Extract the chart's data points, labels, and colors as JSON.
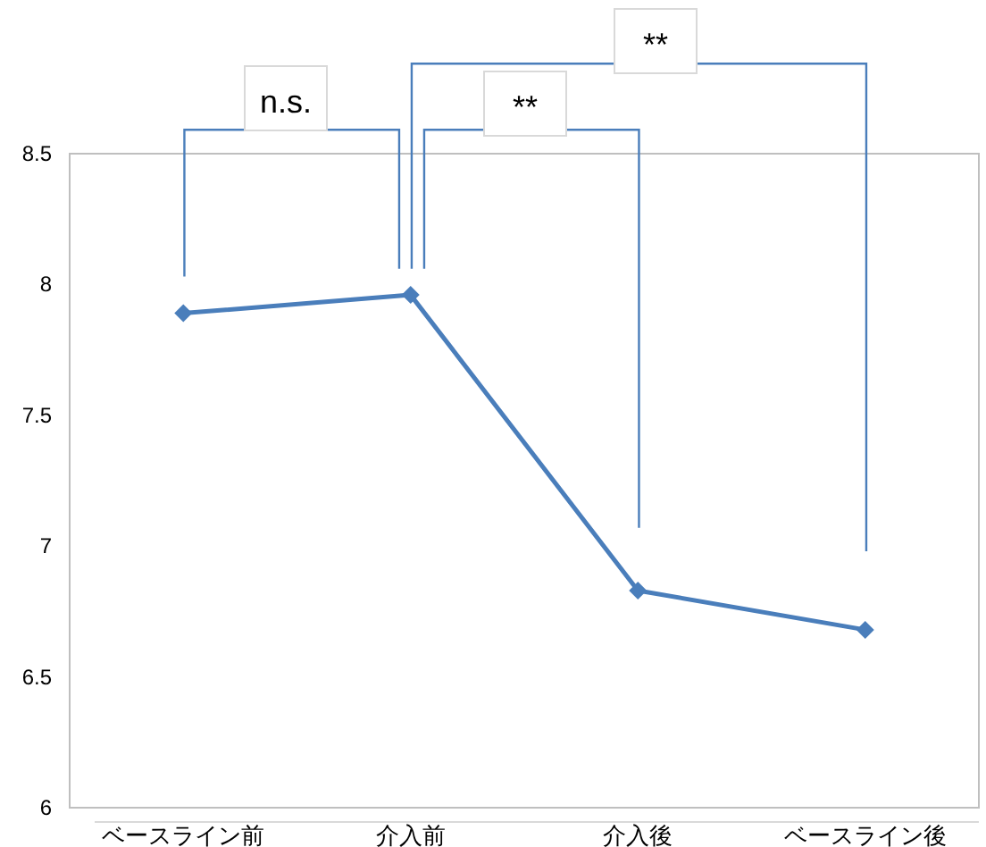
{
  "chart_data": {
    "type": "line",
    "categories": [
      "ベースライン前",
      "介入前",
      "介入後",
      "ベースライン後"
    ],
    "series": [
      {
        "color": "#4a7ebb",
        "values": [
          7.89,
          7.96,
          6.83,
          6.68
        ]
      }
    ],
    "ylim": [
      6,
      8.5
    ],
    "yticks": [
      6,
      6.5,
      7,
      7.5,
      8,
      8.5
    ],
    "marker": "diamond",
    "line_style": "solid",
    "grid": false,
    "annotations": [
      "n.s.",
      "**",
      "**"
    ]
  }
}
